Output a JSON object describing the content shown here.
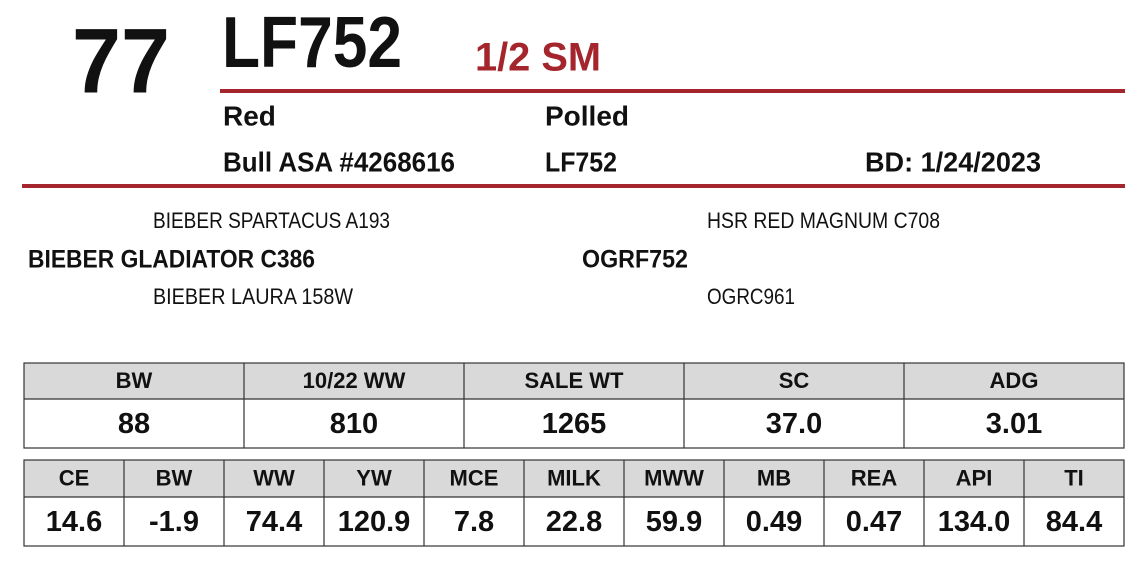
{
  "lot": "77",
  "name": "LF752",
  "breed": "1/2 SM",
  "color": "Red",
  "horn": "Polled",
  "registration": "Bull ASA #4268616",
  "tattoo": "LF752",
  "birthdate": "BD: 1/24/2023",
  "pedigree": {
    "sire_sire": "BIEBER SPARTACUS A193",
    "sire": "BIEBER GLADIATOR C386",
    "sire_dam": "BIEBER LAURA 158W",
    "dam_sire": "HSR RED MAGNUM C708",
    "dam": "OGRF752",
    "dam_dam": "OGRC961"
  },
  "performance": {
    "headers": [
      "BW",
      "10/22 WW",
      "SALE WT",
      "SC",
      "ADG"
    ],
    "values": [
      "88",
      "810",
      "1265",
      "37.0",
      "3.01"
    ]
  },
  "epds": {
    "headers": [
      "CE",
      "BW",
      "WW",
      "YW",
      "MCE",
      "MILK",
      "MWW",
      "MB",
      "REA",
      "API",
      "TI"
    ],
    "values": [
      "14.6",
      "-1.9",
      "74.4",
      "120.9",
      "7.8",
      "22.8",
      "59.9",
      "0.49",
      "0.47",
      "134.0",
      "84.4"
    ]
  }
}
